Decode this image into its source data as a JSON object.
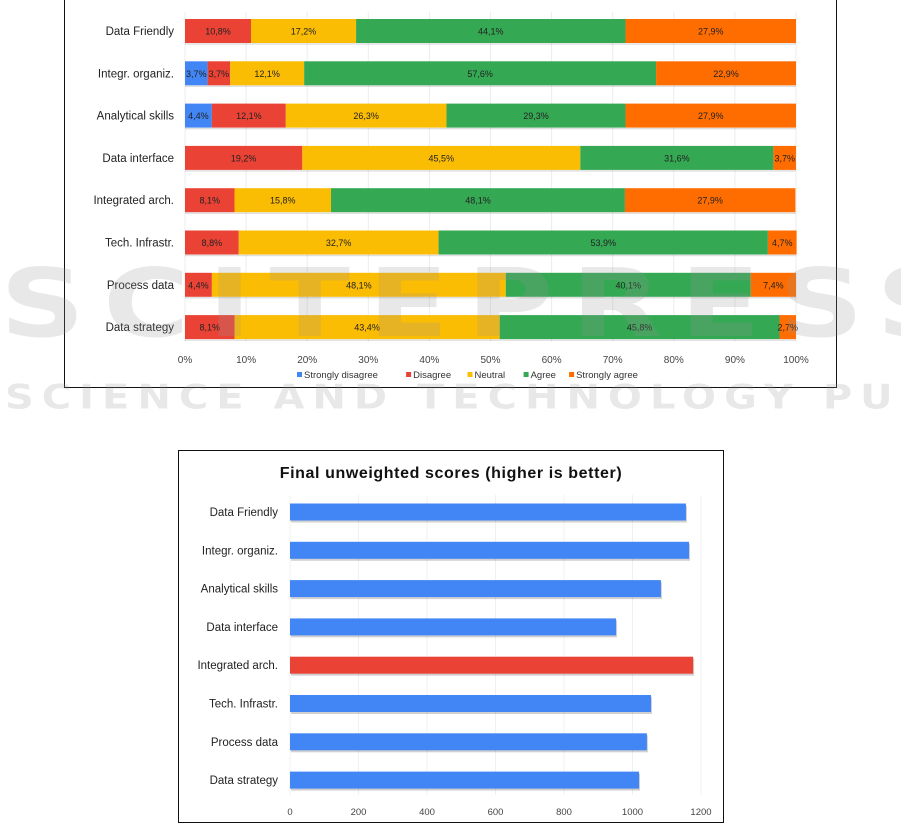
{
  "watermark": {
    "big": "SCITEPRESS",
    "small": "SCIENCE AND TECHNOLOGY PUBLICATIONS"
  },
  "chart_data": [
    {
      "type": "bar",
      "orientation": "horizontal",
      "stacked": "percent",
      "title": "",
      "xlabel": "",
      "ylabel": "",
      "xlim": [
        0,
        100
      ],
      "x_ticks": [
        "0%",
        "10%",
        "20%",
        "30%",
        "40%",
        "50%",
        "60%",
        "70%",
        "80%",
        "90%",
        "100%"
      ],
      "grid": true,
      "legend_position": "bottom",
      "categories": [
        "Data Friendly",
        "Integr. organiz.",
        "Analytical skills",
        "Data interface",
        "Integrated arch.",
        "Tech. Infrastr.",
        "Process data",
        "Data strategy"
      ],
      "series": [
        {
          "name": "Strongly disagree",
          "color": "#4285f4",
          "values": [
            0,
            3.7,
            4.4,
            0,
            0,
            0,
            0,
            0
          ],
          "labels": [
            "",
            "3,7%",
            "4,4%",
            "",
            "",
            "",
            "",
            ""
          ]
        },
        {
          "name": "Disagree",
          "color": "#ea4335",
          "values": [
            10.8,
            3.7,
            12.1,
            19.2,
            8.1,
            8.8,
            4.4,
            8.1
          ],
          "labels": [
            "10,8%",
            "3,7%",
            "12,1%",
            "19,2%",
            "8,1%",
            "8,8%",
            "4,4%",
            "8,1%"
          ]
        },
        {
          "name": "Neutral",
          "color": "#fbbc04",
          "values": [
            17.2,
            12.1,
            26.3,
            45.5,
            15.8,
            32.7,
            48.1,
            43.4
          ],
          "labels": [
            "17,2%",
            "12,1%",
            "26,3%",
            "45,5%",
            "15,8%",
            "32,7%",
            "48,1%",
            "43,4%"
          ]
        },
        {
          "name": "Agree",
          "color": "#34a853",
          "values": [
            44.1,
            57.6,
            29.3,
            31.6,
            48.1,
            53.9,
            40.1,
            45.8
          ],
          "labels": [
            "44,1%",
            "57,6%",
            "29,3%",
            "31,6%",
            "48,1%",
            "53,9%",
            "40,1%",
            "45,8%"
          ]
        },
        {
          "name": "Strongly agree",
          "color": "#ff6d01",
          "values": [
            27.9,
            22.9,
            27.9,
            3.7,
            27.9,
            4.7,
            7.4,
            2.7
          ],
          "labels": [
            "27,9%",
            "22,9%",
            "27,9%",
            "3,7%",
            "27,9%",
            "4,7%",
            "7,4%",
            "2,7%"
          ]
        }
      ]
    },
    {
      "type": "bar",
      "orientation": "horizontal",
      "title": "Final unweighted scores (higher is better)",
      "xlabel": "",
      "ylabel": "",
      "xlim": [
        0,
        1200
      ],
      "x_ticks": [
        "0",
        "200",
        "400",
        "600",
        "800",
        "1000",
        "1200"
      ],
      "grid": true,
      "legend_position": "none",
      "categories": [
        "Data Friendly",
        "Integr. organiz.",
        "Analytical skills",
        "Data interface",
        "Integrated arch.",
        "Tech. Infrastr.",
        "Process data",
        "Data strategy"
      ],
      "values": [
        1156,
        1165,
        1083,
        952,
        1177,
        1054,
        1042,
        1019
      ],
      "colors": [
        "#4285f4",
        "#4285f4",
        "#4285f4",
        "#4285f4",
        "#ea4335",
        "#4285f4",
        "#4285f4",
        "#4285f4"
      ],
      "highlight": "Integrated arch."
    }
  ]
}
